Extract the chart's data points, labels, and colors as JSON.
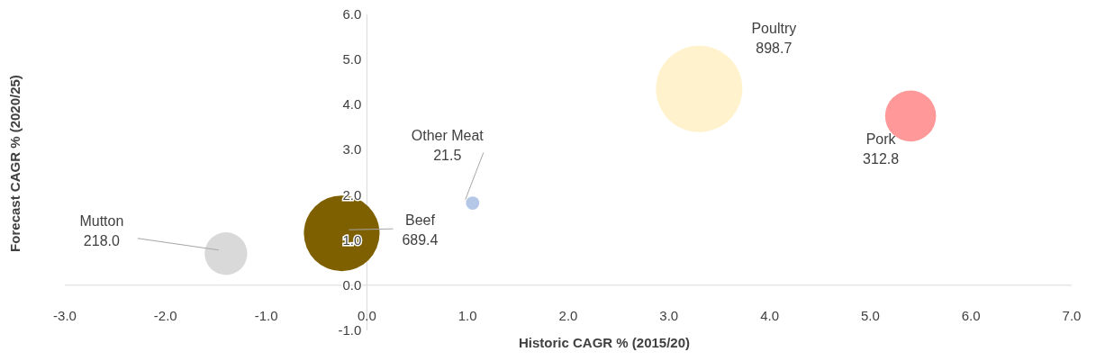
{
  "chart_data": {
    "type": "bubble",
    "xlabel": "Historic CAGR % (2015/20)",
    "ylabel": "Forecast CAGR % (2020/25)",
    "series": [
      {
        "name": "Mutton",
        "color": "#d9d9d9",
        "x": [
          -1.4
        ],
        "values": [
          0.7
        ],
        "sizes": [
          0.243
        ]
      },
      {
        "name": "Beef",
        "color": "#7f6000",
        "x": [
          -0.25
        ],
        "values": [
          1.15
        ],
        "sizes": [
          0.767
        ]
      },
      {
        "name": "Other Meat",
        "color": "#b4c7e7",
        "x": [
          1.05
        ],
        "values": [
          1.82
        ],
        "sizes": [
          0.024
        ]
      },
      {
        "name": "Poultry",
        "color": "#fff2cc",
        "x": [
          3.3
        ],
        "values": [
          4.35
        ],
        "sizes": [
          1
        ]
      },
      {
        "name": "Pork",
        "color": "#ff9999",
        "x": [
          5.4
        ],
        "values": [
          3.75
        ],
        "sizes": [
          0.348
        ]
      }
    ],
    "annotations": [
      {
        "text": "218.0",
        "x": -1.4,
        "y": 0.7
      },
      {
        "text": "689.4",
        "x": -0.25,
        "y": 1.15
      },
      {
        "text": "21.5",
        "x": 1.05,
        "y": 1.82
      },
      "898.7",
      {
        "text": "312.8",
        "x": 5.4,
        "y": 3.75
      }
    ],
    "xlim": [
      -3,
      7
    ],
    "ylim": [
      -1,
      6
    ],
    "xticks": [
      {
        "value": -3,
        "label": "-3.0"
      },
      {
        "value": -2,
        "label": "-2.0"
      },
      {
        "value": -1,
        "label": "-1.0"
      },
      {
        "value": 0,
        "label": "0.0"
      },
      {
        "value": 1,
        "label": "1.0"
      },
      {
        "value": 2,
        "label": "2.0"
      },
      {
        "value": 3,
        "label": "3.0"
      },
      {
        "value": 4,
        "label": "4.0"
      },
      {
        "value": 5,
        "label": "5.0"
      },
      {
        "value": 6,
        "label": "6.0"
      },
      {
        "value": 7,
        "label": "7.0"
      }
    ],
    "yticks": [
      {
        "value": -1,
        "label": "-1.0"
      },
      {
        "value": 0,
        "label": "0.0"
      },
      {
        "value": 1,
        "label": "1.0"
      },
      {
        "value": 2,
        "label": "2.0"
      },
      {
        "value": 3,
        "label": "3.0"
      },
      {
        "value": 4,
        "label": "4.0"
      },
      {
        "value": 5,
        "label": "5.0"
      },
      {
        "value": 6,
        "label": "6.0"
      }
    ]
  }
}
